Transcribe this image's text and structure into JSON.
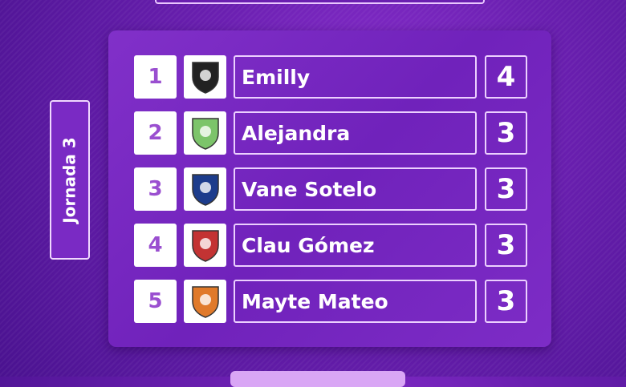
{
  "jornada": "Jornada 3",
  "ranking": [
    {
      "rank": "1",
      "name": "Emilly",
      "score": "4",
      "logo": "crest-black-white-icon",
      "logo_color": "#222222"
    },
    {
      "rank": "2",
      "name": "Alejandra",
      "score": "3",
      "logo": "crest-green-lightning-icon",
      "logo_color": "#7cc46a"
    },
    {
      "rank": "3",
      "name": "Vane Sotelo",
      "score": "3",
      "logo": "apa-crest-icon",
      "logo_color": "#1c3c8c"
    },
    {
      "rank": "4",
      "name": "Clau Gómez",
      "score": "3",
      "logo": "eagle-crest-icon",
      "logo_color": "#c33333"
    },
    {
      "rank": "5",
      "name": "Mayte Mateo",
      "score": "3",
      "logo": "futsal-roldan-crest-icon",
      "logo_color": "#e07a2a"
    }
  ],
  "colors": {
    "background": "#6a1fb0",
    "rank_text": "#9a4fd0"
  }
}
